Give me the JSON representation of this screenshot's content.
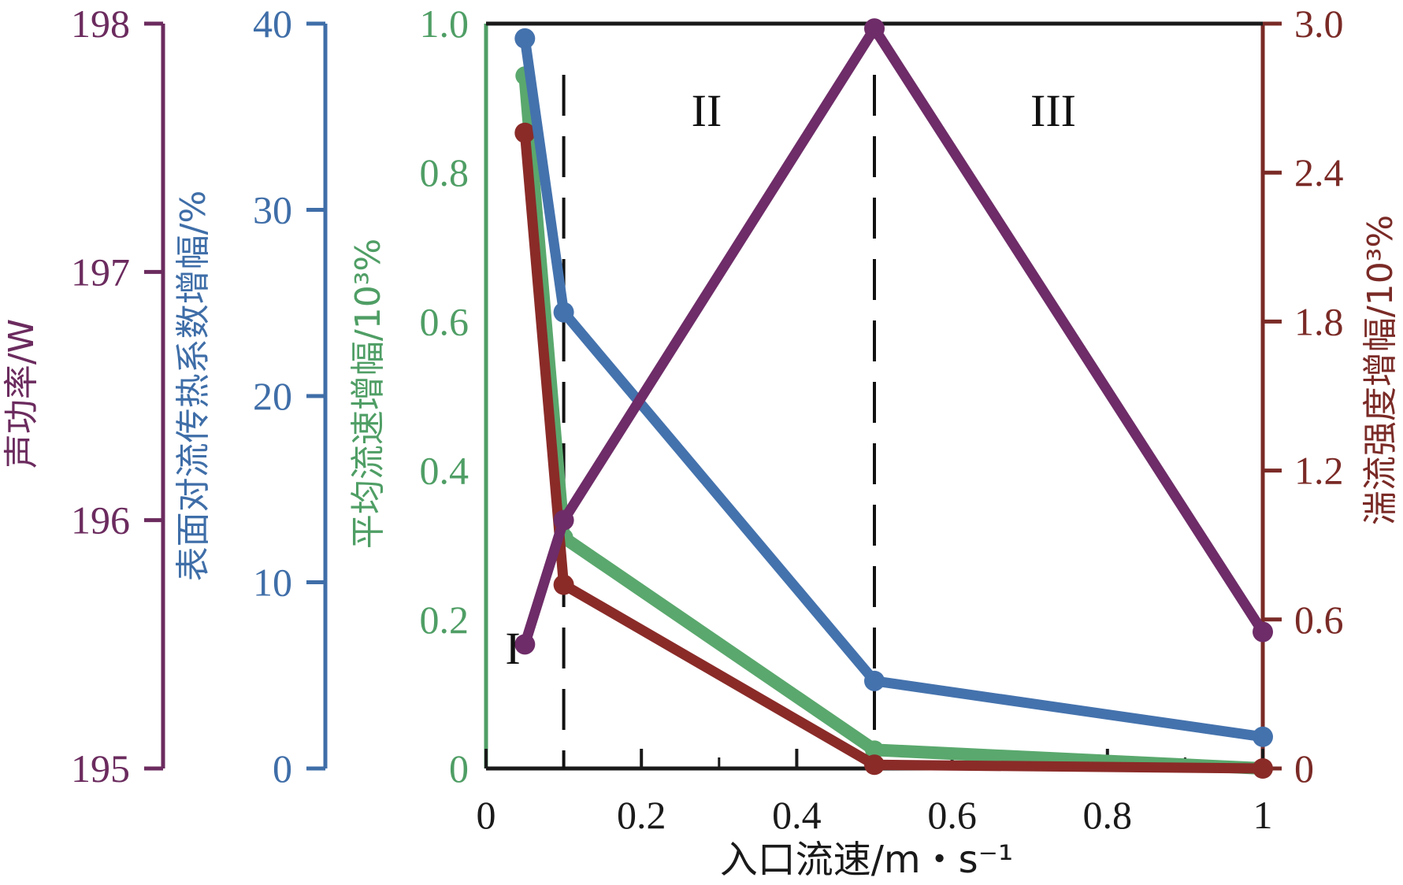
{
  "chart_data": {
    "type": "line",
    "xlabel": "入口流速/m・s⁻¹",
    "x": [
      0.05,
      0.1,
      0.5,
      1.0
    ],
    "xlim": [
      0,
      1
    ],
    "xticks": [
      "0",
      "0.2",
      "0.4",
      "0.6",
      "0.8",
      "1"
    ],
    "regions": [
      {
        "label": "I",
        "boundary_x": 0.1
      },
      {
        "label": "II",
        "boundary_x": 0.5
      },
      {
        "label": "III"
      }
    ],
    "axes": [
      {
        "id": "power",
        "label": "声功率/W",
        "ylim": [
          195,
          198
        ],
        "ticks": [
          "195",
          "196",
          "197",
          "198"
        ],
        "color": "#6b2b5e"
      },
      {
        "id": "htc",
        "label": "表面对流传热系数增幅/%",
        "ylim": [
          0,
          40
        ],
        "ticks": [
          "0",
          "10",
          "20",
          "30",
          "40"
        ],
        "color": "#3f6ea8"
      },
      {
        "id": "velocity",
        "label": "平均流速增幅/10³%",
        "ylim": [
          0,
          1.0
        ],
        "ticks": [
          "0",
          "0.2",
          "0.4",
          "0.6",
          "0.8",
          "1.0"
        ],
        "color": "#4f9e65"
      },
      {
        "id": "turbulence",
        "label": "湍流强度增幅/10³%",
        "ylim": [
          0,
          3.0
        ],
        "ticks": [
          "0",
          "0.6",
          "1.2",
          "1.8",
          "2.4",
          "3.0"
        ],
        "color": "#7a2a26"
      }
    ],
    "series": [
      {
        "name": "平均流速增幅",
        "axis": "velocity",
        "color": "#5aa86d",
        "values": [
          0.93,
          0.31,
          0.025,
          0.0
        ]
      },
      {
        "name": "湍流强度增幅",
        "axis": "turbulence",
        "color": "#8a2b28",
        "values": [
          2.56,
          0.74,
          0.015,
          0.0
        ]
      },
      {
        "name": "表面对流传热系数增幅",
        "axis": "htc",
        "color": "#4472ad",
        "values": [
          39.2,
          24.5,
          4.7,
          1.7
        ]
      },
      {
        "name": "声功率",
        "axis": "power",
        "color": "#6e2c68",
        "values": [
          195.5,
          196.0,
          197.98,
          195.55
        ]
      }
    ]
  }
}
